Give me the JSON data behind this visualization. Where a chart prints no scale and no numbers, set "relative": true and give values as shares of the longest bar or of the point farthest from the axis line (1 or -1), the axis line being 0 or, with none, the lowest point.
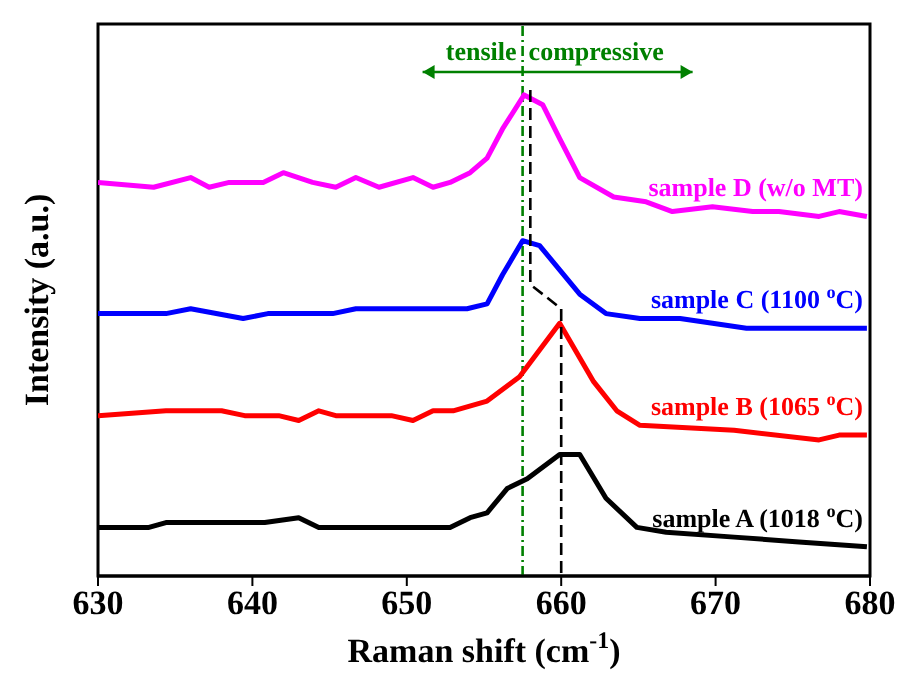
{
  "chart_data": {
    "type": "line",
    "xlabel": "Raman shift (cm$^{-1}$)",
    "ylabel": "Intensity (a.u.)",
    "relative": true,
    "xlim": [
      630,
      680
    ],
    "xticks": [
      630,
      640,
      650,
      660,
      670,
      680
    ],
    "tick_labels": "x",
    "marker": "none",
    "annotations": [
      "tensile",
      "compressive"
    ],
    "ref_lines": [
      {
        "axis": "x",
        "value": 657.5,
        "color": "#008000",
        "line_style": "dashed"
      }
    ],
    "series": [
      {
        "name": "sample A (1018 $^{o}$C)",
        "color": "#000000",
        "x": [
          630,
          633.3,
          634.4,
          640.8,
          643,
          644.3,
          650.4,
          652.8,
          654.1,
          655.2,
          656.5,
          657.8,
          659.9,
          661.2,
          662.9,
          664.9,
          666.8,
          671.2,
          675.4,
          679.8
        ],
        "values": [
          0.1,
          0.1,
          0.11,
          0.11,
          0.12,
          0.1,
          0.1,
          0.1,
          0.12,
          0.13,
          0.18,
          0.2,
          0.25,
          0.25,
          0.16,
          0.1,
          0.09,
          0.08,
          0.07,
          0.06
        ]
      },
      {
        "name": "sample B (1065 $^{o}$C)",
        "color": "#ff0000",
        "x": [
          630,
          634.4,
          638,
          639.5,
          641.7,
          643,
          644.3,
          645.4,
          649,
          650.4,
          651.7,
          653,
          655.2,
          657.3,
          659.9,
          662.1,
          663.6,
          665.1,
          671.2,
          676.7,
          678,
          679.8
        ],
        "values": [
          0.33,
          0.34,
          0.34,
          0.33,
          0.33,
          0.32,
          0.34,
          0.33,
          0.33,
          0.32,
          0.34,
          0.34,
          0.36,
          0.41,
          0.52,
          0.4,
          0.34,
          0.31,
          0.3,
          0.28,
          0.29,
          0.29
        ]
      },
      {
        "name": "sample C (1100 $^{o}$C)",
        "color": "#0000ff",
        "x": [
          630,
          634.4,
          636,
          639.4,
          641,
          643.1,
          645.2,
          646.7,
          650.4,
          651.7,
          653.9,
          655.2,
          656.2,
          657.5,
          658.6,
          659.9,
          661.2,
          662.9,
          665.1,
          667.7,
          669.8,
          672,
          675.4,
          679.8
        ],
        "values": [
          0.54,
          0.54,
          0.55,
          0.53,
          0.54,
          0.54,
          0.54,
          0.55,
          0.55,
          0.55,
          0.55,
          0.56,
          0.62,
          0.69,
          0.68,
          0.63,
          0.58,
          0.54,
          0.53,
          0.53,
          0.52,
          0.51,
          0.51,
          0.51
        ]
      },
      {
        "name": "sample D (w/o MT)",
        "color": "#ff00ff",
        "x": [
          630,
          633.6,
          636,
          637.2,
          638.5,
          640.7,
          642,
          643.9,
          645.4,
          646.7,
          648.2,
          650.4,
          651.7,
          652.8,
          654.1,
          655.2,
          656.2,
          657.6,
          658.8,
          659.9,
          661.2,
          663.4,
          665.5,
          667.2,
          669.8,
          672.4,
          674.1,
          676.7,
          678,
          679.8
        ],
        "values": [
          0.81,
          0.8,
          0.82,
          0.8,
          0.81,
          0.81,
          0.83,
          0.81,
          0.8,
          0.82,
          0.8,
          0.82,
          0.8,
          0.81,
          0.83,
          0.86,
          0.92,
          0.99,
          0.97,
          0.9,
          0.82,
          0.78,
          0.77,
          0.75,
          0.76,
          0.75,
          0.75,
          0.74,
          0.75,
          0.74
        ]
      },
      {
        "type": "line",
        "color": "#000000",
        "line_style": "dashed",
        "x": [
          658,
          658,
          660,
          660
        ],
        "values": [
          1.0,
          0.6,
          0.55,
          0
        ]
      }
    ]
  }
}
